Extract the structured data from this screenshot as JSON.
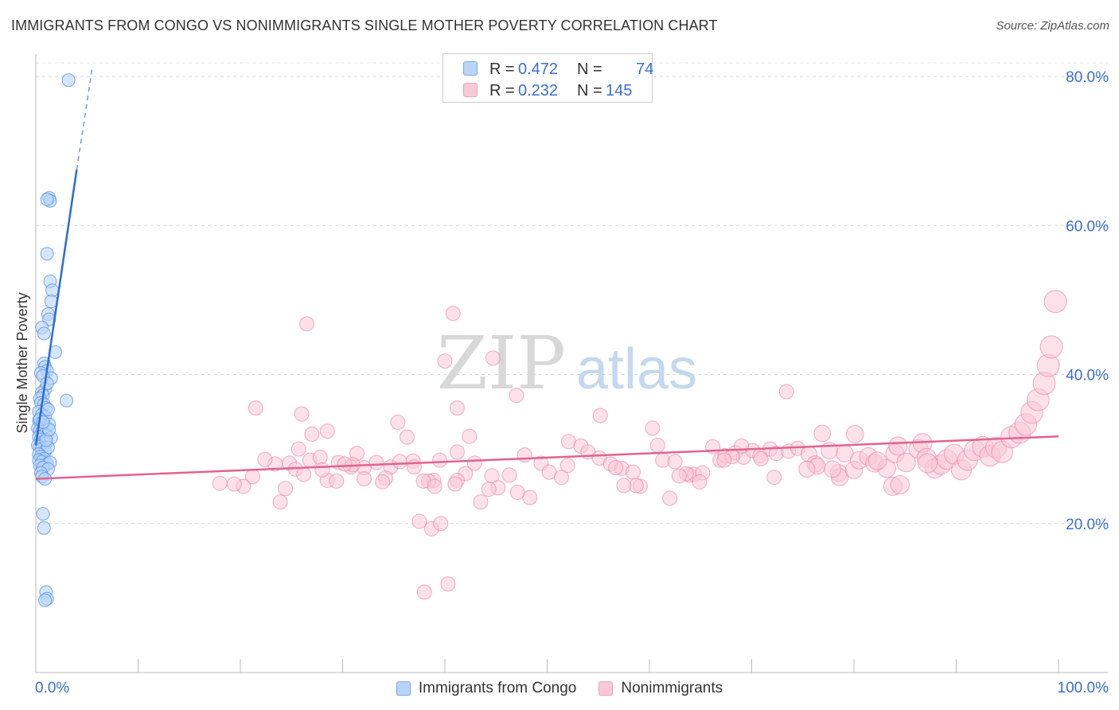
{
  "title": "IMMIGRANTS FROM CONGO VS NONIMMIGRANTS SINGLE MOTHER POVERTY CORRELATION CHART",
  "source": "Source: ZipAtlas.com",
  "watermark": {
    "zip": "ZIP",
    "atlas": "atlas"
  },
  "stats": {
    "r_label": "R =",
    "n_label": "N =",
    "series1": {
      "r": "0.472",
      "n": "74"
    },
    "series2": {
      "r": "0.232",
      "n": "145"
    }
  },
  "legend": {
    "series1": "Immigrants from Congo",
    "series2": "Nonimmigrants"
  },
  "colors": {
    "blue": "#4f8fe0",
    "blue_fill": "#b9d4f7",
    "pink": "#e8799e",
    "pink_fill": "#f9c8d7",
    "axis_label": "#3a6fd0"
  },
  "chart_data": {
    "type": "scatter",
    "title": "IMMIGRANTS FROM CONGO VS NONIMMIGRANTS SINGLE MOTHER POVERTY CORRELATION CHART",
    "xlabel": "",
    "ylabel": "Single Mother Poverty",
    "xlim": [
      0,
      100
    ],
    "ylim": [
      0,
      80
    ],
    "x_tick_labels": {
      "left": "0.0%",
      "right": "100.0%"
    },
    "y_ticks": [
      20,
      40,
      60,
      80
    ],
    "y_tick_labels": [
      "20.0%",
      "40.0%",
      "60.0%",
      "80.0%"
    ],
    "grid": true,
    "series": [
      {
        "name": "Immigrants from Congo",
        "r": 0.472,
        "n": 74,
        "trend": {
          "x1": 0,
          "y1": 30.5,
          "x2": 4.0,
          "y2": 67.5,
          "dashed_to": {
            "x": 5.5,
            "y": 81
          }
        },
        "points": [
          [
            3.2,
            79.5
          ],
          [
            1.3,
            63.7
          ],
          [
            1.4,
            63.3
          ],
          [
            1.1,
            63.5
          ],
          [
            1.1,
            56.2
          ],
          [
            1.4,
            52.5
          ],
          [
            1.6,
            51.3
          ],
          [
            1.5,
            49.8
          ],
          [
            1.2,
            48.1
          ],
          [
            1.3,
            47.4
          ],
          [
            0.6,
            46.3
          ],
          [
            0.8,
            45.5
          ],
          [
            1.9,
            43.0
          ],
          [
            0.8,
            41.5
          ],
          [
            0.9,
            41.0
          ],
          [
            1.1,
            40.5
          ],
          [
            0.5,
            40.2
          ],
          [
            1.5,
            39.5
          ],
          [
            0.7,
            39.8
          ],
          [
            0.9,
            38.0
          ],
          [
            0.6,
            37.6
          ],
          [
            0.7,
            37.2
          ],
          [
            0.4,
            36.8
          ],
          [
            0.5,
            36.2
          ],
          [
            0.8,
            36.0
          ],
          [
            1.0,
            35.5
          ],
          [
            0.3,
            35.0
          ],
          [
            0.6,
            34.6
          ],
          [
            0.9,
            34.3
          ],
          [
            1.2,
            35.3
          ],
          [
            0.3,
            33.8
          ],
          [
            0.5,
            33.5
          ],
          [
            0.7,
            33.2
          ],
          [
            1.0,
            33.0
          ],
          [
            1.3,
            33.3
          ],
          [
            0.2,
            32.8
          ],
          [
            0.4,
            32.5
          ],
          [
            0.6,
            32.3
          ],
          [
            0.9,
            32.0
          ],
          [
            1.1,
            31.8
          ],
          [
            0.3,
            31.6
          ],
          [
            0.5,
            31.3
          ],
          [
            0.8,
            31.0
          ],
          [
            1.0,
            30.8
          ],
          [
            1.5,
            31.5
          ],
          [
            0.2,
            30.5
          ],
          [
            0.4,
            30.3
          ],
          [
            0.6,
            30.0
          ],
          [
            0.9,
            29.7
          ],
          [
            1.2,
            30.2
          ],
          [
            0.3,
            29.3
          ],
          [
            0.5,
            29.0
          ],
          [
            0.8,
            28.7
          ],
          [
            0.3,
            28.5
          ],
          [
            0.6,
            28.3
          ],
          [
            1.1,
            28.0
          ],
          [
            1.4,
            28.2
          ],
          [
            0.4,
            27.8
          ],
          [
            0.7,
            27.5
          ],
          [
            1.2,
            27.3
          ],
          [
            0.5,
            26.8
          ],
          [
            0.6,
            26.3
          ],
          [
            0.9,
            26.0
          ],
          [
            1.0,
            31.2
          ],
          [
            1.3,
            32.6
          ],
          [
            0.4,
            34.0
          ],
          [
            3.0,
            36.5
          ],
          [
            0.7,
            21.3
          ],
          [
            0.8,
            19.4
          ],
          [
            1.0,
            10.8
          ],
          [
            1.1,
            9.9
          ],
          [
            0.9,
            9.7
          ],
          [
            0.7,
            33.6
          ],
          [
            1.1,
            38.8
          ]
        ]
      },
      {
        "name": "Nonimmigrants",
        "r": 0.232,
        "n": 145,
        "trend": {
          "x1": 0,
          "y1": 26.0,
          "x2": 100,
          "y2": 31.7
        },
        "points": [
          [
            26.5,
            46.8
          ],
          [
            40.8,
            48.2
          ],
          [
            21.5,
            35.5
          ],
          [
            26.0,
            34.7
          ],
          [
            28.5,
            32.4
          ],
          [
            35.4,
            33.6
          ],
          [
            36.3,
            31.6
          ],
          [
            41.2,
            35.5
          ],
          [
            42.4,
            31.7
          ],
          [
            44.7,
            42.2
          ],
          [
            47.0,
            37.2
          ],
          [
            40.0,
            41.8
          ],
          [
            25.7,
            30.0
          ],
          [
            26.8,
            28.5
          ],
          [
            24.8,
            28.1
          ],
          [
            27.8,
            28.9
          ],
          [
            29.6,
            28.2
          ],
          [
            30.8,
            27.6
          ],
          [
            31.4,
            29.4
          ],
          [
            34.7,
            27.6
          ],
          [
            36.9,
            28.4
          ],
          [
            39.5,
            28.5
          ],
          [
            41.2,
            29.6
          ],
          [
            42.9,
            28.1
          ],
          [
            44.6,
            26.4
          ],
          [
            47.8,
            29.2
          ],
          [
            49.4,
            28.1
          ],
          [
            50.2,
            26.9
          ],
          [
            52.1,
            31.0
          ],
          [
            53.3,
            30.4
          ],
          [
            54.0,
            29.6
          ],
          [
            55.1,
            28.8
          ],
          [
            56.2,
            28.0
          ],
          [
            57.3,
            27.4
          ],
          [
            58.4,
            26.9
          ],
          [
            60.3,
            32.8
          ],
          [
            60.8,
            30.5
          ],
          [
            61.3,
            28.5
          ],
          [
            62.5,
            28.3
          ],
          [
            63.9,
            26.5
          ],
          [
            64.4,
            26.6
          ],
          [
            65.2,
            26.8
          ],
          [
            66.2,
            30.3
          ],
          [
            66.9,
            28.5
          ],
          [
            67.4,
            29.1
          ],
          [
            68.4,
            29.5
          ],
          [
            69.2,
            28.9
          ],
          [
            70.1,
            29.8
          ],
          [
            70.8,
            29.1
          ],
          [
            71.8,
            30.0
          ],
          [
            72.4,
            29.4
          ],
          [
            73.6,
            29.7
          ],
          [
            74.5,
            30.1
          ],
          [
            75.6,
            29.3
          ],
          [
            76.2,
            28.0
          ],
          [
            76.4,
            27.7
          ],
          [
            77.6,
            29.8
          ],
          [
            78.5,
            26.8
          ],
          [
            78.6,
            26.2
          ],
          [
            79.1,
            29.4
          ],
          [
            80.0,
            27.2
          ],
          [
            80.5,
            28.5
          ],
          [
            81.4,
            29.0
          ],
          [
            82.0,
            28.1
          ],
          [
            83.2,
            27.4
          ],
          [
            84.0,
            29.4
          ],
          [
            85.1,
            28.2
          ],
          [
            86.3,
            30.0
          ],
          [
            86.7,
            30.8
          ],
          [
            87.1,
            28.8
          ],
          [
            87.9,
            27.4
          ],
          [
            88.5,
            27.9
          ],
          [
            89.1,
            28.6
          ],
          [
            89.8,
            29.3
          ],
          [
            90.5,
            27.2
          ],
          [
            91.1,
            28.5
          ],
          [
            91.8,
            29.8
          ],
          [
            92.6,
            30.3
          ],
          [
            93.3,
            29.1
          ],
          [
            93.9,
            30.2
          ],
          [
            94.5,
            29.6
          ],
          [
            95.4,
            31.6
          ],
          [
            96.2,
            32.2
          ],
          [
            96.8,
            33.3
          ],
          [
            97.4,
            34.9
          ],
          [
            98.0,
            36.6
          ],
          [
            98.6,
            38.8
          ],
          [
            99.0,
            41.2
          ],
          [
            99.3,
            43.7
          ],
          [
            99.7,
            49.8
          ],
          [
            73.4,
            37.7
          ],
          [
            76.9,
            32.1
          ],
          [
            84.3,
            30.4
          ],
          [
            87.2,
            28.1
          ],
          [
            83.8,
            25.0
          ],
          [
            84.5,
            25.2
          ],
          [
            82.3,
            28.4
          ],
          [
            80.1,
            32.0
          ],
          [
            77.9,
            27.3
          ],
          [
            75.4,
            27.3
          ],
          [
            72.2,
            26.2
          ],
          [
            70.9,
            28.7
          ],
          [
            69.0,
            30.4
          ],
          [
            68.1,
            29.0
          ],
          [
            67.3,
            28.5
          ],
          [
            64.9,
            25.6
          ],
          [
            63.6,
            26.7
          ],
          [
            62.9,
            26.4
          ],
          [
            62.0,
            23.4
          ],
          [
            59.1,
            25.0
          ],
          [
            58.7,
            25.1
          ],
          [
            57.5,
            25.1
          ],
          [
            56.7,
            27.5
          ],
          [
            55.2,
            34.5
          ],
          [
            52.0,
            27.8
          ],
          [
            51.4,
            26.2
          ],
          [
            48.3,
            23.5
          ],
          [
            47.1,
            24.2
          ],
          [
            46.3,
            26.5
          ],
          [
            45.2,
            24.8
          ],
          [
            44.3,
            24.6
          ],
          [
            43.5,
            22.9
          ],
          [
            42.0,
            26.7
          ],
          [
            41.2,
            25.8
          ],
          [
            38.9,
            25.8
          ],
          [
            38.4,
            25.7
          ],
          [
            37.9,
            25.7
          ],
          [
            37.0,
            27.6
          ],
          [
            35.6,
            28.3
          ],
          [
            34.2,
            26.1
          ],
          [
            33.3,
            28.2
          ],
          [
            32.1,
            27.5
          ],
          [
            31.0,
            27.9
          ],
          [
            30.2,
            28.0
          ],
          [
            28.5,
            25.8
          ],
          [
            28.0,
            27.2
          ],
          [
            27.0,
            32.0
          ],
          [
            25.4,
            27.3
          ],
          [
            24.4,
            24.7
          ],
          [
            23.9,
            22.9
          ],
          [
            23.4,
            28.0
          ],
          [
            22.4,
            28.6
          ],
          [
            21.2,
            26.3
          ],
          [
            20.3,
            25.0
          ],
          [
            19.4,
            25.3
          ],
          [
            18.0,
            25.4
          ],
          [
            41.0,
            25.3
          ],
          [
            39.0,
            25.0
          ],
          [
            37.5,
            20.3
          ],
          [
            38.7,
            19.3
          ],
          [
            39.6,
            20.0
          ],
          [
            40.3,
            11.9
          ],
          [
            38.0,
            10.8
          ],
          [
            32.1,
            26.0
          ],
          [
            29.4,
            25.7
          ],
          [
            26.2,
            26.6
          ],
          [
            33.9,
            25.6
          ]
        ]
      }
    ]
  }
}
